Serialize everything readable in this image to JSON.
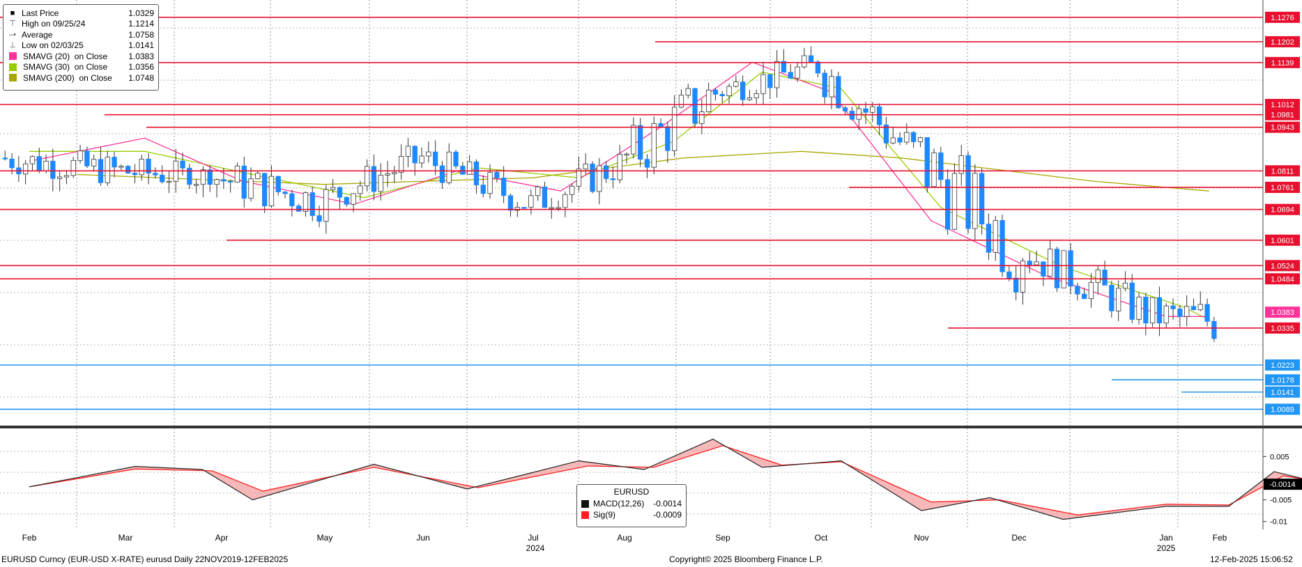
{
  "legend": {
    "items": [
      {
        "label": "Last Price",
        "value": "1.0329",
        "symbol": "square",
        "color": "#000000"
      },
      {
        "label": "High on 09/25/24",
        "value": "1.1214",
        "symbol": "high",
        "color": "#555555"
      },
      {
        "label": "Average",
        "value": "1.0758",
        "symbol": "avg",
        "color": "#555555"
      },
      {
        "label": "Low on 02/03/25",
        "value": "1.0141",
        "symbol": "low",
        "color": "#555555"
      },
      {
        "label": "SMAVG (20)  on Close",
        "value": "1.0383",
        "symbol": "box",
        "color": "#ff3399"
      },
      {
        "label": "SMAVG (30)  on Close",
        "value": "1.0356",
        "symbol": "box",
        "color": "#99cc00"
      },
      {
        "label": "SMAVG (200)  on Close",
        "value": "1.0748",
        "symbol": "box",
        "color": "#aaa600"
      }
    ]
  },
  "price_levels": {
    "red": [
      "1.1276",
      "1.1202",
      "1.1139",
      "1.1012",
      "1.0981",
      "1.0943",
      "1.0811",
      "1.0761",
      "1.0694",
      "1.0601",
      "1.0524",
      "1.0484",
      "1.0335"
    ],
    "blue": [
      "1.0223",
      "1.0178",
      "1.0141",
      "1.0089"
    ],
    "pink": "1.0383"
  },
  "macd_axis": {
    "ticks": [
      "0.005",
      "-0.005",
      "-0.01"
    ],
    "last_value": "-0.0014"
  },
  "macd_legend": {
    "title": "EURUSD",
    "rows": [
      {
        "label": "MACD(12,26)",
        "value": "-0.0014",
        "color": "#111111"
      },
      {
        "label": "Sig(9)",
        "value": "-0.0009",
        "color": "#ff2020"
      }
    ]
  },
  "x_axis": {
    "months": [
      "Feb",
      "Mar",
      "Apr",
      "May",
      "Jun",
      "Jul",
      "Aug",
      "Sep",
      "Oct",
      "Nov",
      "Dec",
      "Jan",
      "Feb"
    ],
    "years": [
      "2024",
      "2025"
    ]
  },
  "footer": {
    "left": "EURUSD Curncy (EUR-USD X-RATE) eurusd  Daily 22NOV2019-12FEB2025",
    "center": "Copyright© 2025 Bloomberg Finance L.P.",
    "right": "12-Feb-2025 15:06:52"
  },
  "chart_data": {
    "type": "candlestick",
    "instrument": "EURUSD",
    "period": "Daily",
    "x_range": [
      "2024-01-25",
      "2025-02-12"
    ],
    "ohlc_monthly_approx": [
      {
        "month": "Feb 2024",
        "open": 1.085,
        "high": 1.091,
        "low": 1.069,
        "close": 1.081
      },
      {
        "month": "Mar 2024",
        "open": 1.081,
        "high": 1.097,
        "low": 1.077,
        "close": 1.079
      },
      {
        "month": "Apr 2024",
        "open": 1.079,
        "high": 1.088,
        "low": 1.06,
        "close": 1.072
      },
      {
        "month": "May 2024",
        "open": 1.072,
        "high": 1.09,
        "low": 1.066,
        "close": 1.085
      },
      {
        "month": "Jun 2024",
        "open": 1.085,
        "high": 1.091,
        "low": 1.067,
        "close": 1.071
      },
      {
        "month": "Jul 2024",
        "open": 1.071,
        "high": 1.094,
        "low": 1.07,
        "close": 1.083
      },
      {
        "month": "Aug 2024",
        "open": 1.083,
        "high": 1.12,
        "low": 1.078,
        "close": 1.105
      },
      {
        "month": "Sep 2024",
        "open": 1.105,
        "high": 1.121,
        "low": 1.101,
        "close": 1.113
      },
      {
        "month": "Oct 2024",
        "open": 1.113,
        "high": 1.114,
        "low": 1.076,
        "close": 1.086
      },
      {
        "month": "Nov 2024",
        "open": 1.086,
        "high": 1.094,
        "low": 1.033,
        "close": 1.058
      },
      {
        "month": "Dec 2024",
        "open": 1.058,
        "high": 1.063,
        "low": 1.035,
        "close": 1.036
      },
      {
        "month": "Jan 2025",
        "open": 1.036,
        "high": 1.054,
        "low": 1.018,
        "close": 1.036
      },
      {
        "month": "Feb 2025",
        "open": 1.036,
        "high": 1.045,
        "low": 1.014,
        "close": 1.033
      }
    ],
    "sma20_path": [
      [
        0,
        1.084
      ],
      [
        1.2,
        1.091
      ],
      [
        2.2,
        1.078
      ],
      [
        3.3,
        1.071
      ],
      [
        4.3,
        1.081
      ],
      [
        5.3,
        1.075
      ],
      [
        6.4,
        1.095
      ],
      [
        7.3,
        1.114
      ],
      [
        8.1,
        1.105
      ],
      [
        9.1,
        1.066
      ],
      [
        10.2,
        1.049
      ],
      [
        11.0,
        1.037
      ],
      [
        11.8,
        1.037
      ]
    ],
    "sma30_path": [
      [
        0,
        1.087
      ],
      [
        1.2,
        1.087
      ],
      [
        2.3,
        1.08
      ],
      [
        3.4,
        1.073
      ],
      [
        4.5,
        1.082
      ],
      [
        5.5,
        1.079
      ],
      [
        6.5,
        1.09
      ],
      [
        7.4,
        1.111
      ],
      [
        8.2,
        1.106
      ],
      [
        9.2,
        1.07
      ],
      [
        10.3,
        1.052
      ],
      [
        11.3,
        1.04
      ],
      [
        11.8,
        1.036
      ]
    ],
    "sma200_path": [
      [
        0.5,
        1.08
      ],
      [
        3,
        1.077
      ],
      [
        5,
        1.079
      ],
      [
        6.6,
        1.085
      ],
      [
        7.8,
        1.087
      ],
      [
        8.8,
        1.085
      ],
      [
        10.5,
        1.078
      ],
      [
        11.8,
        1.075
      ]
    ],
    "macd_path": [
      [
        0,
        -0.002
      ],
      [
        1.1,
        0.0027
      ],
      [
        1.8,
        0.002
      ],
      [
        2.3,
        -0.005
      ],
      [
        3.5,
        0.0032
      ],
      [
        4.4,
        -0.0025
      ],
      [
        5.5,
        0.004
      ],
      [
        6.2,
        0.002
      ],
      [
        6.9,
        0.009
      ],
      [
        7.4,
        0.0025
      ],
      [
        8.2,
        0.004
      ],
      [
        9.0,
        -0.0075
      ],
      [
        9.7,
        -0.0045
      ],
      [
        10.3,
        -0.0095
      ],
      [
        11.0,
        -0.0065
      ],
      [
        12.1,
        -0.0065
      ],
      [
        12.6,
        0.0015
      ],
      [
        13.0,
        -0.0005
      ],
      [
        13.3,
        -0.0014
      ]
    ],
    "signal_path": [
      [
        0,
        -0.002
      ],
      [
        1.1,
        0.0021
      ],
      [
        1.9,
        0.0017
      ],
      [
        2.4,
        -0.003
      ],
      [
        3.5,
        0.0025
      ],
      [
        4.5,
        -0.0022
      ],
      [
        5.6,
        0.0028
      ],
      [
        6.3,
        0.0025
      ],
      [
        7.0,
        0.0075
      ],
      [
        7.6,
        0.003
      ],
      [
        8.2,
        0.0038
      ],
      [
        9.1,
        -0.0055
      ],
      [
        9.8,
        -0.005
      ],
      [
        10.4,
        -0.0085
      ],
      [
        11.0,
        -0.006
      ],
      [
        12.1,
        -0.0062
      ],
      [
        12.7,
        0.0005
      ],
      [
        13.0,
        -0.0004
      ],
      [
        13.3,
        -0.0009
      ]
    ],
    "ylim": [
      1.005,
      1.132
    ],
    "macd_ylim": [
      -0.0115,
      0.011
    ]
  }
}
